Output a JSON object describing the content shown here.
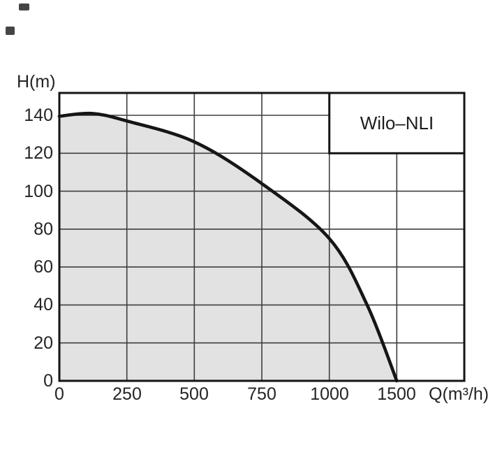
{
  "chart_data": {
    "type": "area",
    "title": "Wilo–NLI",
    "xlabel": "Q(m³/h)",
    "ylabel": "H(m)",
    "x_tick_labels": [
      "0",
      "250",
      "500",
      "750",
      "1000",
      "1500"
    ],
    "x_tick_values": [
      0,
      250,
      500,
      750,
      1000,
      1500
    ],
    "y_tick_values": [
      0,
      20,
      40,
      60,
      80,
      100,
      120,
      140
    ],
    "ylim": [
      0,
      152
    ],
    "grid": true,
    "legend_position": "top-right",
    "curve_points_Q_H": [
      [
        0,
        139.5
      ],
      [
        120,
        141
      ],
      [
        250,
        137
      ],
      [
        500,
        126
      ],
      [
        750,
        104
      ],
      [
        1000,
        75
      ],
      [
        1280,
        40
      ],
      [
        1500,
        0
      ]
    ],
    "colors": {
      "area_fill": "#e2e2e2",
      "line": "#161616",
      "grid": "#3e3e3e",
      "border": "#141414",
      "background": "#ffffff"
    }
  }
}
